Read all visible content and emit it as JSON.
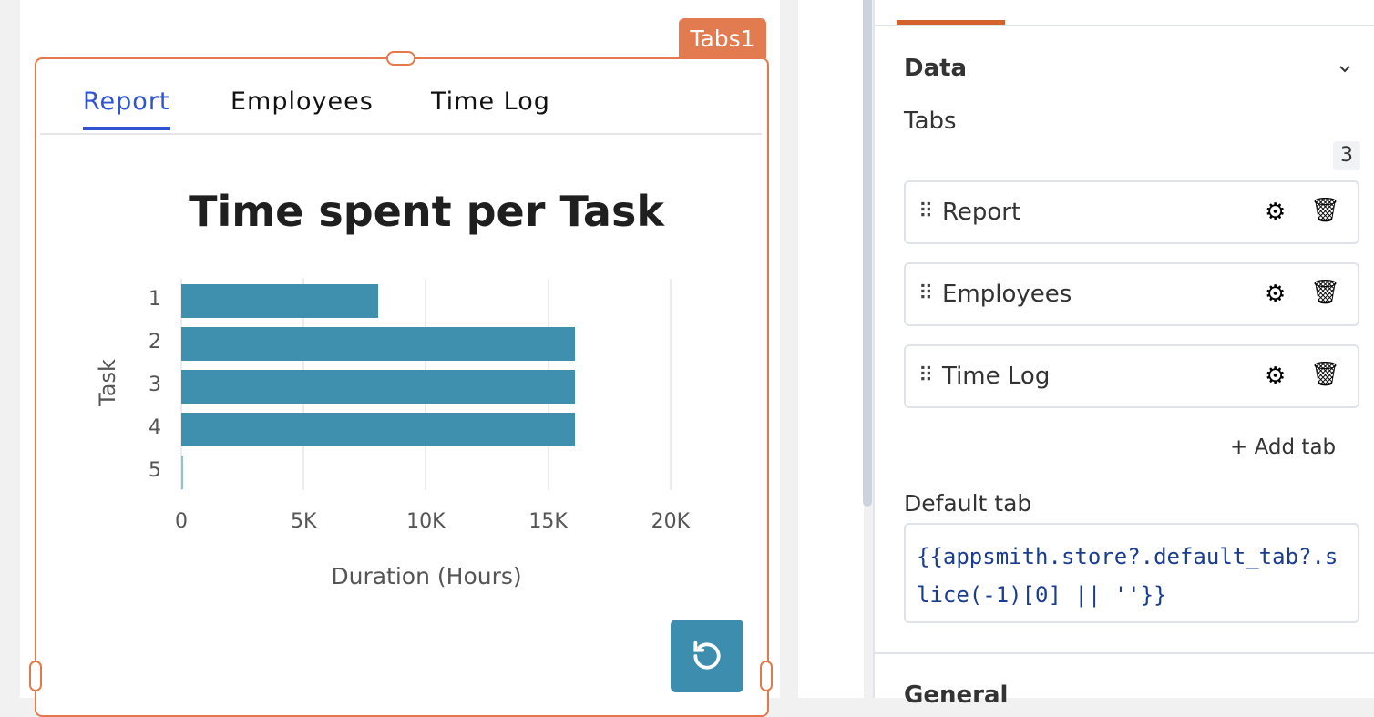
{
  "widget_label": "Tabs1",
  "tabs": [
    {
      "label": "Report"
    },
    {
      "label": "Employees"
    },
    {
      "label": "Time Log"
    }
  ],
  "chart_data": {
    "type": "bar",
    "orientation": "horizontal",
    "title": "Time spent per Task",
    "xlabel": "Duration (Hours)",
    "ylabel": "Task",
    "categories": [
      "1",
      "2",
      "3",
      "4",
      "5"
    ],
    "values": [
      8050,
      16100,
      16100,
      16100,
      50
    ],
    "xlim": [
      0,
      22000
    ],
    "xticks": [
      "0",
      "5K",
      "10K",
      "15K",
      "20K"
    ],
    "grid": true,
    "color": "#3f8fae"
  },
  "panel": {
    "section": "Data",
    "tabs_label": "Tabs",
    "count": "3",
    "items": [
      {
        "label": "Report"
      },
      {
        "label": "Employees"
      },
      {
        "label": "Time Log"
      }
    ],
    "add_tab": "Add tab",
    "default_tab_label": "Default tab",
    "default_tab_value": "{{appsmith.store?.default_tab?.slice(-1)[0] || ''}}",
    "next_section": "General"
  },
  "accent": "#e5794b"
}
